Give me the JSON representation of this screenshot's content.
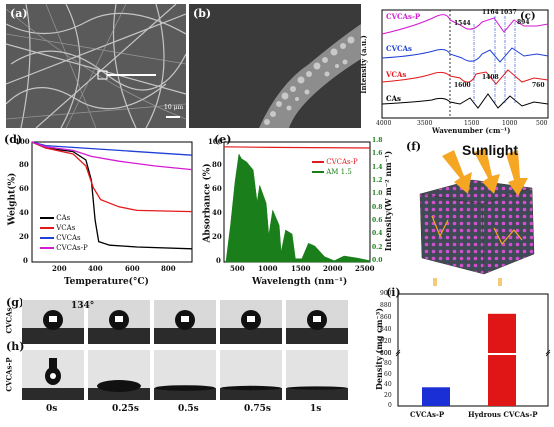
{
  "panels": {
    "a": {
      "label": "(a)",
      "scale_text": "10 μm"
    },
    "b": {
      "label": "(b)"
    },
    "c": {
      "label": "(c)",
      "xlabel": "Wavenumber (cm⁻¹)",
      "ylabel": "Intensity (a.u.)",
      "xticks": [
        "4000",
        "3500",
        "1500",
        "1000",
        "500"
      ],
      "series": [
        "CVCAs-P",
        "CVCAs",
        "VCAs",
        "CAs"
      ],
      "peaks": [
        "1544",
        "1164",
        "1037",
        "894",
        "1600",
        "1408",
        "760"
      ]
    },
    "d": {
      "label": "(d)",
      "xlabel": "Temperature(°C)",
      "ylabel": "Weight(%)",
      "xticks": [
        "200",
        "400",
        "600",
        "800"
      ],
      "yticks": [
        "0",
        "20",
        "40",
        "60",
        "80",
        "100"
      ],
      "legend": [
        "CAs",
        "VCAs",
        "CVCAs",
        "CVCAs-P"
      ]
    },
    "e": {
      "label": "(e)",
      "xlabel": "Wavelength (nm⁻¹)",
      "ylabel": "Absorbance (%)",
      "y2label": "Intensity(W m⁻² nm⁻¹)",
      "xticks": [
        "500",
        "1000",
        "1500",
        "2000",
        "2500"
      ],
      "yticks": [
        "0",
        "20",
        "40",
        "60",
        "80",
        "100"
      ],
      "y2ticks": [
        "0.0",
        "0.2",
        "0.4",
        "0.6",
        "0.8",
        "1.0",
        "1.2",
        "1.4",
        "1.6",
        "1.8"
      ],
      "legend": [
        "CVCAs-P",
        "AM 1.5"
      ]
    },
    "f": {
      "label": "(f)",
      "title": "Sunlight"
    },
    "g": {
      "label": "(g)",
      "row": "CVCAs",
      "angle": "134°"
    },
    "h": {
      "label": "(h)",
      "row": "CVCAs-P",
      "times": [
        "0s",
        "0.25s",
        "0.5s",
        "0.75s",
        "1s"
      ]
    },
    "i": {
      "label": "(i)",
      "ylabel": "Density (mg cm⁻³)",
      "yticks": [
        "0",
        "20",
        "40",
        "60",
        "80",
        "100",
        "800",
        "820",
        "840",
        "860",
        "880",
        "900"
      ]
    }
  },
  "chart_data": [
    {
      "panel": "d",
      "type": "line",
      "xlabel": "Temperature(°C)",
      "ylabel": "Weight(%)",
      "xlim": [
        25,
        900
      ],
      "ylim": [
        0,
        100
      ],
      "series": [
        {
          "name": "CAs",
          "color": "#000000",
          "points": [
            [
              25,
              100
            ],
            [
              100,
              95
            ],
            [
              250,
              92
            ],
            [
              320,
              85
            ],
            [
              350,
              68
            ],
            [
              370,
              35
            ],
            [
              390,
              17
            ],
            [
              450,
              14
            ],
            [
              600,
              12.5
            ],
            [
              900,
              11
            ]
          ]
        },
        {
          "name": "VCAs",
          "color": "#e31a1c",
          "points": [
            [
              25,
              100
            ],
            [
              100,
              95
            ],
            [
              250,
              90
            ],
            [
              320,
              80
            ],
            [
              360,
              62
            ],
            [
              400,
              52
            ],
            [
              500,
              46
            ],
            [
              600,
              43
            ],
            [
              900,
              42
            ]
          ]
        },
        {
          "name": "CVCAs",
          "color": "#1f3fd6",
          "points": [
            [
              25,
              100
            ],
            [
              100,
              97
            ],
            [
              300,
              95
            ],
            [
              500,
              93
            ],
            [
              700,
              91
            ],
            [
              900,
              89
            ]
          ]
        },
        {
          "name": "CVCAs-P",
          "color": "#d41ad4",
          "points": [
            [
              25,
              100
            ],
            [
              100,
              96
            ],
            [
              250,
              93
            ],
            [
              350,
              88
            ],
            [
              500,
              84
            ],
            [
              700,
              80
            ],
            [
              900,
              77
            ]
          ]
        }
      ]
    },
    {
      "panel": "e",
      "type": "line",
      "xlabel": "Wavelength (nm⁻¹)",
      "ylabel": "Absorbance (%)",
      "xlim": [
        250,
        2500
      ],
      "ylim": [
        0,
        100
      ],
      "series": [
        {
          "name": "CVCAs-P",
          "color": "#e31a1c",
          "axis": "left",
          "points": [
            [
              250,
              96
            ],
            [
              1000,
              95.5
            ],
            [
              2500,
              95
            ]
          ]
        },
        {
          "name": "AM 1.5",
          "color": "#1a7f1a",
          "axis": "right",
          "type": "area",
          "points": [
            [
              280,
              0
            ],
            [
              350,
              0.55
            ],
            [
              420,
              1.2
            ],
            [
              480,
              1.62
            ],
            [
              520,
              1.55
            ],
            [
              600,
              1.5
            ],
            [
              700,
              1.38
            ],
            [
              760,
              0.9
            ],
            [
              800,
              1.15
            ],
            [
              900,
              0.88
            ],
            [
              940,
              0.4
            ],
            [
              1000,
              0.78
            ],
            [
              1100,
              0.55
            ],
            [
              1130,
              0.15
            ],
            [
              1200,
              0.48
            ],
            [
              1300,
              0.42
            ],
            [
              1350,
              0.05
            ],
            [
              1450,
              0.05
            ],
            [
              1550,
              0.28
            ],
            [
              1650,
              0.24
            ],
            [
              1800,
              0.08
            ],
            [
              1950,
              0.02
            ],
            [
              2100,
              0.09
            ],
            [
              2300,
              0.06
            ],
            [
              2500,
              0.02
            ]
          ]
        }
      ]
    },
    {
      "panel": "i",
      "type": "bar",
      "categories": [
        "CVCAs-P",
        "Hydrous CVCAs-P"
      ],
      "values": [
        36,
        867
      ],
      "colors": [
        "#1a2fd6",
        "#e01616"
      ],
      "ylabel": "Density (mg cm⁻³)"
    }
  ]
}
